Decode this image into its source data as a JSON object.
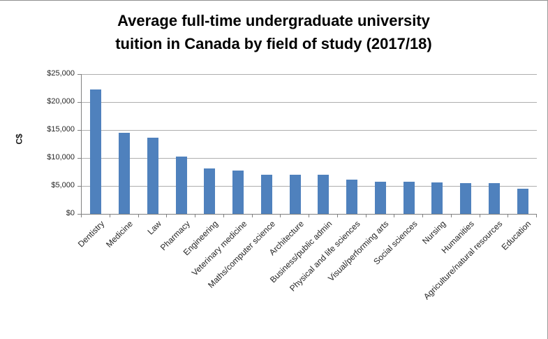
{
  "chart_data": {
    "type": "bar",
    "title": "Average full-time undergraduate university tuition in Canada by field of study (2017/18)",
    "title_lines": [
      "Average full-time undergraduate university",
      "tuition in Canada by field of study (2017/18)"
    ],
    "ylabel": "C$",
    "xlabel": "",
    "categories": [
      "Dentistry",
      "Medicine",
      "Law",
      "Pharmacy",
      "Engineering",
      "Veterinary medicine",
      "Maths/computer science",
      "Architecture",
      "Business/public admin",
      "Physical and life sciences",
      "Visual/performing arts",
      "Social sciences",
      "Nursing",
      "Humanities",
      "Agriculture/natural resources",
      "Education"
    ],
    "values": [
      22300,
      14450,
      13650,
      10300,
      8100,
      7700,
      7050,
      7050,
      6950,
      6100,
      5750,
      5700,
      5650,
      5500,
      5500,
      4450
    ],
    "y_tick_values": [
      0,
      5000,
      10000,
      15000,
      20000,
      25000
    ],
    "y_tick_labels": [
      "$0",
      "$5,000",
      "$10,000",
      "$15,000",
      "$20,000",
      "$25,000"
    ],
    "ylim": [
      0,
      25000
    ],
    "grid": true,
    "legend": "none",
    "bar_color": "#4F81BD",
    "gridline_color": "#AEAEAE",
    "axis_color": "#808080",
    "tick_text_color": "#262626",
    "title_color": "#000000"
  }
}
